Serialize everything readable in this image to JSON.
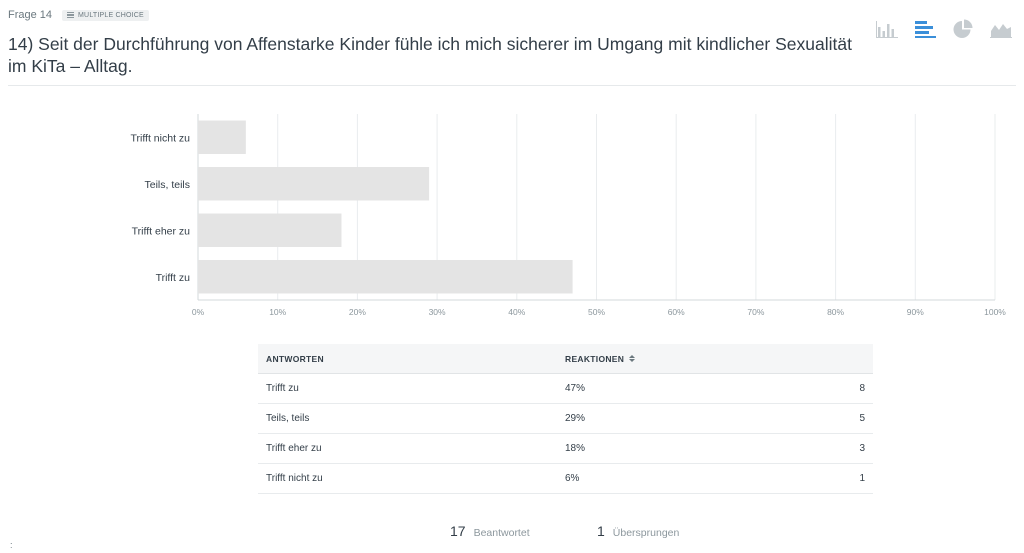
{
  "question": {
    "number": "Frage 14",
    "type": "MULTIPLE CHOICE",
    "title": "14) Seit der Durchführung von Affenstarke Kinder fühle ich mich sicherer im Umgang mit kindlicher Sexualität im KiTa – Alltag."
  },
  "chart_types": {
    "icons": [
      "vertical-bar-chart-icon",
      "horizontal-bar-chart-icon",
      "pie-chart-icon",
      "area-chart-icon"
    ],
    "active": "horizontal-bar-chart-icon",
    "active_color": "#3b8fd9",
    "inactive_color": "#c6ccd0"
  },
  "chart_data": {
    "type": "bar",
    "orientation": "horizontal",
    "categories": [
      "Trifft nicht zu",
      "Teils, teils",
      "Trifft eher zu",
      "Trifft zu"
    ],
    "values": [
      6,
      29,
      18,
      47
    ],
    "unit": "%",
    "xlim": [
      0,
      100
    ],
    "xticks": [
      0,
      10,
      20,
      30,
      40,
      50,
      60,
      70,
      80,
      90,
      100
    ],
    "xtick_labels": [
      "0%",
      "10%",
      "20%",
      "30%",
      "40%",
      "50%",
      "60%",
      "70%",
      "80%",
      "90%",
      "100%"
    ],
    "grid": true,
    "bar_color": "#e4e4e4",
    "title": "",
    "xlabel": "",
    "ylabel": ""
  },
  "table": {
    "header": {
      "answers": "ANTWORTEN",
      "reactions": "REAKTIONEN"
    },
    "rows": [
      {
        "answer": "Trifft zu",
        "percent": "47%",
        "count": "8"
      },
      {
        "answer": "Teils, teils",
        "percent": "29%",
        "count": "5"
      },
      {
        "answer": "Trifft eher zu",
        "percent": "18%",
        "count": "3"
      },
      {
        "answer": "Trifft nicht zu",
        "percent": "6%",
        "count": "1"
      }
    ]
  },
  "summary": {
    "answered_count": "17",
    "answered_label": "Beantwortet",
    "skipped_count": "1",
    "skipped_label": "Übersprungen"
  },
  "corner_mark": ":"
}
